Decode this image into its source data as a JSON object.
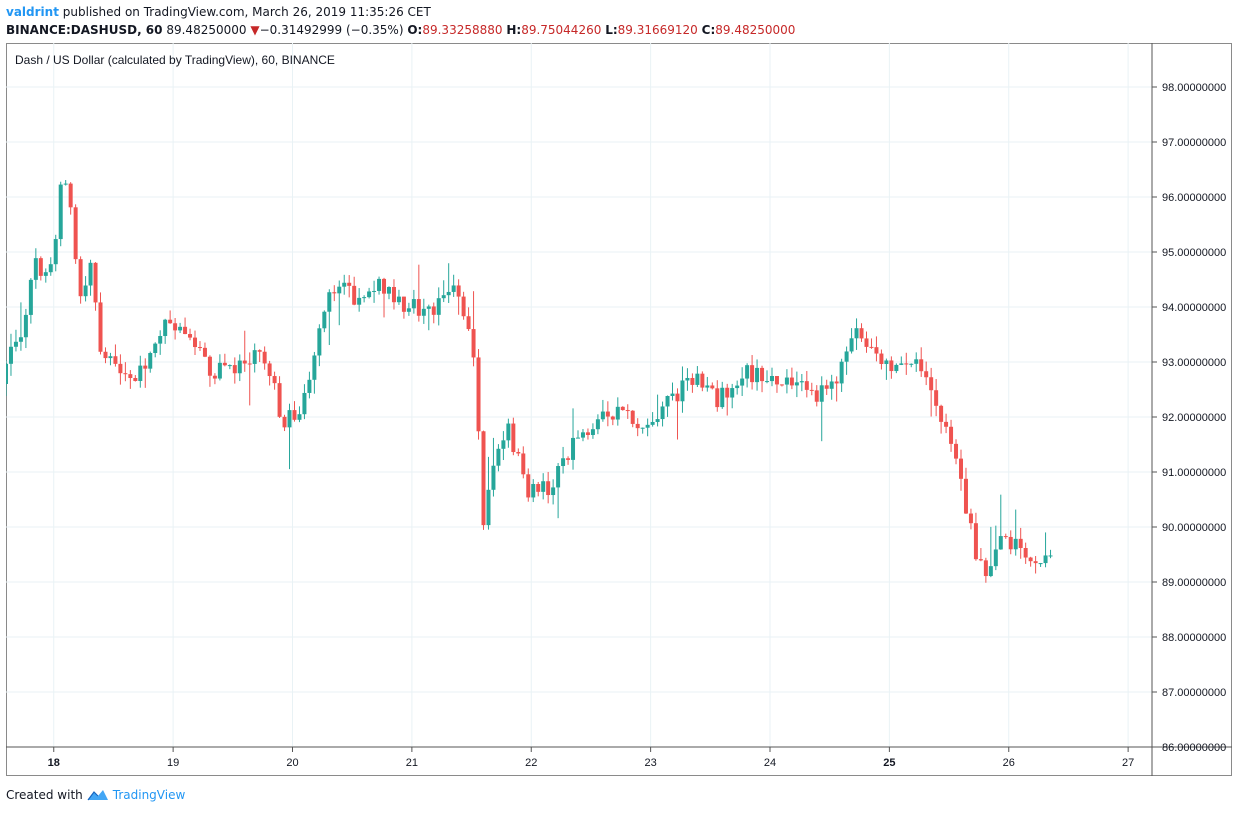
{
  "header": {
    "user": "valdrint",
    "published_text": "published on TradingView.com, March 26, 2019 11:35:26 CET",
    "symbol": "BINANCE:DASHUSD, 60",
    "last": "89.48250000",
    "change_arrow": "▼",
    "change": "−0.31492999 (−0.35%)",
    "o_label": "O:",
    "o": "89.33258880",
    "h_label": "H:",
    "h": "89.75044260",
    "l_label": "L:",
    "l": "89.31669120",
    "c_label": "C:",
    "c": "89.48250000"
  },
  "footer": {
    "created": "Created with",
    "brand": "TradingView",
    "logo_icon": "tradingview-logo-icon"
  },
  "colors": {
    "up": "#26a69a",
    "down": "#ef5350",
    "grid": "#e9f2f5",
    "axis": "#555555"
  },
  "chart_data": {
    "type": "candlestick",
    "title": "Dash / US Dollar (calculated by TradingView), 60, BINANCE",
    "interval": "60",
    "ylim": [
      86,
      98.8
    ],
    "y_ticks": [
      "98.00000000",
      "97.00000000",
      "96.00000000",
      "95.00000000",
      "94.00000000",
      "93.00000000",
      "92.00000000",
      "91.00000000",
      "90.00000000",
      "89.00000000",
      "88.00000000",
      "87.00000000",
      "86.00000000"
    ],
    "x_ticks": [
      "18",
      "19",
      "20",
      "21",
      "22",
      "23",
      "24",
      "25",
      "26",
      "27"
    ],
    "x_ticks_bold": [
      "18",
      "25"
    ],
    "x_range_days": [
      17.6,
      27.2
    ],
    "anchors": [
      [
        17.6,
        92.6
      ],
      [
        17.7,
        93.4
      ],
      [
        17.8,
        93.7
      ],
      [
        17.88,
        94.8
      ],
      [
        17.97,
        94.5
      ],
      [
        18.05,
        95.0
      ],
      [
        18.1,
        96.2
      ],
      [
        18.17,
        96.3
      ],
      [
        18.25,
        94.0
      ],
      [
        18.35,
        94.8
      ],
      [
        18.45,
        93.0
      ],
      [
        18.55,
        92.9
      ],
      [
        18.7,
        92.7
      ],
      [
        18.85,
        93.1
      ],
      [
        19.0,
        93.7
      ],
      [
        19.2,
        93.3
      ],
      [
        19.4,
        92.8
      ],
      [
        19.6,
        92.9
      ],
      [
        19.8,
        93.2
      ],
      [
        19.95,
        92.0
      ],
      [
        20.1,
        91.9
      ],
      [
        20.3,
        94.0
      ],
      [
        20.45,
        94.3
      ],
      [
        20.6,
        94.1
      ],
      [
        20.8,
        94.4
      ],
      [
        21.0,
        94.0
      ],
      [
        21.2,
        93.9
      ],
      [
        21.4,
        94.5
      ],
      [
        21.55,
        93.5
      ],
      [
        21.65,
        89.9
      ],
      [
        21.72,
        91.2
      ],
      [
        21.85,
        91.8
      ],
      [
        22.0,
        90.7
      ],
      [
        22.2,
        90.7
      ],
      [
        22.4,
        91.6
      ],
      [
        22.6,
        92.0
      ],
      [
        22.8,
        92.1
      ],
      [
        23.0,
        91.8
      ],
      [
        23.2,
        92.3
      ],
      [
        23.4,
        92.7
      ],
      [
        23.6,
        92.3
      ],
      [
        23.8,
        92.8
      ],
      [
        24.0,
        92.8
      ],
      [
        24.2,
        92.6
      ],
      [
        24.4,
        92.4
      ],
      [
        24.6,
        92.6
      ],
      [
        24.75,
        93.7
      ],
      [
        24.9,
        93.1
      ],
      [
        25.05,
        92.9
      ],
      [
        25.2,
        93.1
      ],
      [
        25.35,
        92.6
      ],
      [
        25.5,
        91.8
      ],
      [
        25.65,
        90.8
      ],
      [
        25.75,
        89.6
      ],
      [
        25.85,
        89.1
      ],
      [
        25.95,
        89.9
      ],
      [
        26.1,
        89.7
      ],
      [
        26.25,
        89.4
      ],
      [
        26.35,
        89.48
      ]
    ],
    "last_close": 89.4825
  }
}
